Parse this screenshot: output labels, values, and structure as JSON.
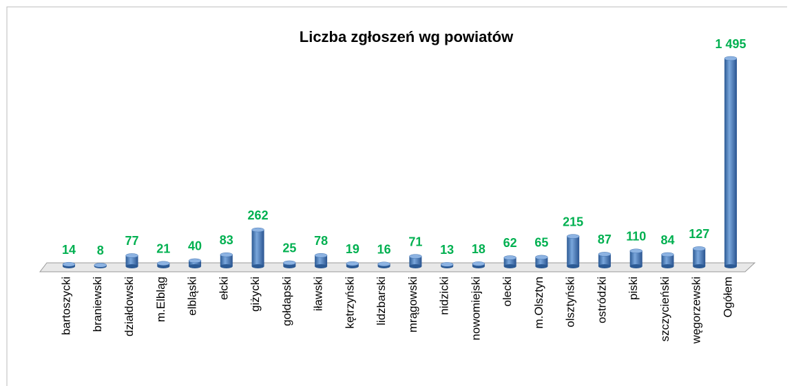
{
  "chart_data": {
    "type": "bar",
    "title": "Liczba zgłoszeń wg powiatów",
    "categories": [
      "bartoszycki",
      "braniewski",
      "działdowski",
      "m.Elbląg",
      "elbląski",
      "ełcki",
      "giżycki",
      "gołdapski",
      "iławski",
      "kętrzyński",
      "lidzbarski",
      "mrągowski",
      "nidzicki",
      "nowomiejski",
      "olecki",
      "m.Olsztyn",
      "olsztyński",
      "ostródzki",
      "piski",
      "szczycieński",
      "węgorzewski",
      "Ogółem"
    ],
    "values": [
      14,
      8,
      77,
      21,
      40,
      83,
      262,
      25,
      78,
      19,
      16,
      71,
      13,
      18,
      62,
      65,
      215,
      87,
      110,
      84,
      127,
      1495
    ],
    "value_labels": [
      "14",
      "8",
      "77",
      "21",
      "40",
      "83",
      "262",
      "25",
      "78",
      "19",
      "16",
      "71",
      "13",
      "18",
      "62",
      "65",
      "215",
      "87",
      "110",
      "84",
      "127",
      "1 495"
    ],
    "color": "#4a7ebb",
    "label_color": "#00b050"
  }
}
